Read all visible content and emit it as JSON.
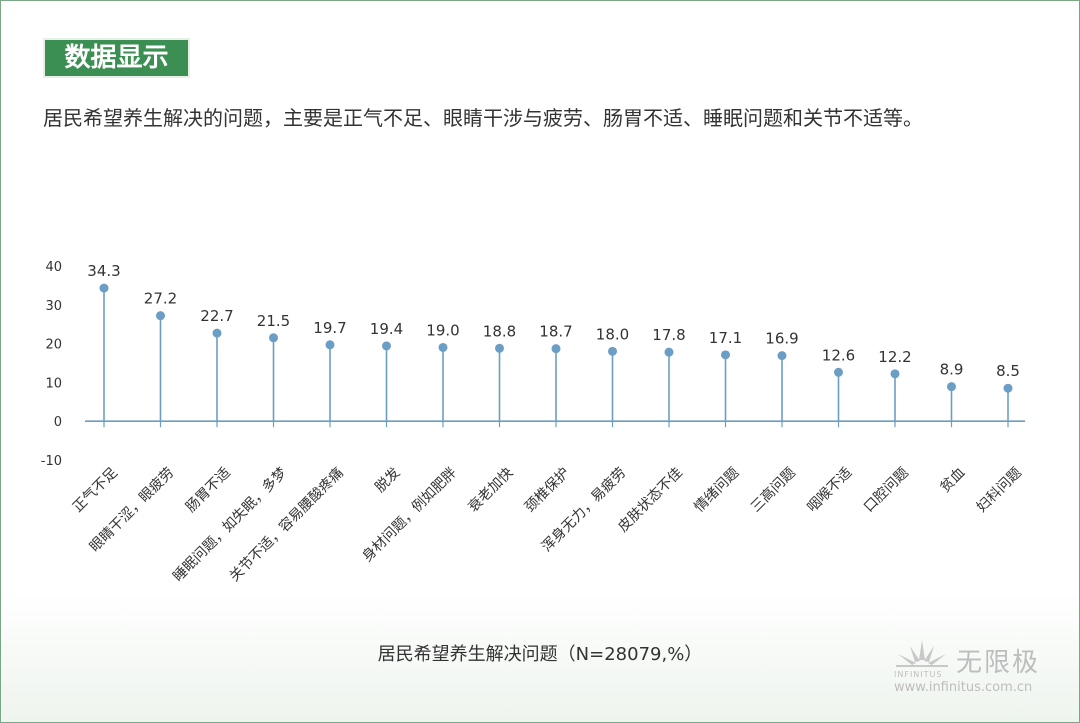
{
  "header": {
    "title": "数据显示"
  },
  "intro": "居民希望养生解决的问题，主要是正气不足、眼睛干涉与疲劳、肠胃不适、睡眠问题和关节不适等。",
  "watermark": {
    "brand_cn": "无限极",
    "brand_en": "INFINITUS",
    "url": "www.infinitus.com.cn"
  },
  "colors": {
    "accent": "#3c8f52",
    "series": "#6a9ec4",
    "text": "#333333"
  },
  "chart_data": {
    "type": "lollipop",
    "title": "",
    "xlabel": "居民希望养生解决问题（N=28079,%）",
    "ylabel": "",
    "ylim": [
      -10,
      40
    ],
    "yticks": [
      40,
      30,
      20,
      10,
      0,
      -10
    ],
    "grid": false,
    "categories": [
      "正气不足",
      "眼睛干涩，眼疲劳",
      "肠胃不适",
      "睡眠问题，如失眠，多梦",
      "关节不适，容易腰酸疼痛",
      "脱发",
      "身材问题，例如肥胖",
      "衰老加快",
      "颈椎保护",
      "浑身无力，易疲劳",
      "皮肤状态不佳",
      "情绪问题",
      "三高问题",
      "咽喉不适",
      "口腔问题",
      "贫血",
      "妇科问题"
    ],
    "values": [
      34.3,
      27.2,
      22.7,
      21.5,
      19.7,
      19.4,
      19.0,
      18.8,
      18.7,
      18.0,
      17.8,
      17.1,
      16.9,
      12.6,
      12.2,
      8.9,
      8.5
    ],
    "value_labels": [
      "34.3",
      "27.2",
      "22.7",
      "21.5",
      "19.7",
      "19.4",
      "19.0",
      "18.8",
      "18.7",
      "18.0",
      "17.8",
      "17.1",
      "16.9",
      "12.6",
      "12.2",
      "8.9",
      "8.5"
    ]
  }
}
